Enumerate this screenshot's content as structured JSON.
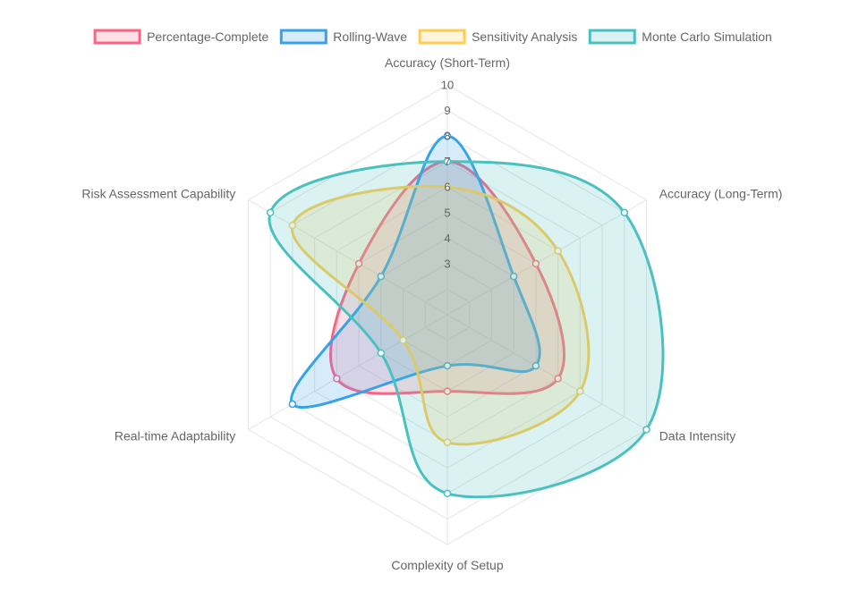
{
  "chart_data": {
    "type": "radar",
    "axes": [
      "Accuracy (Short-Term)",
      "Accuracy (Long-Term)",
      "Data Intensity",
      "Complexity of Setup",
      "Real-time Adaptability",
      "Risk Assessment Capability"
    ],
    "r_min": 1,
    "r_max": 10,
    "ticks": [
      3,
      4,
      5,
      6,
      7,
      8,
      9,
      10
    ],
    "grid": true,
    "legend_position": "top",
    "series": [
      {
        "name": "Percentage-Complete",
        "values": [
          7,
          5,
          6,
          4,
          6,
          5
        ],
        "border_color": "#ff6384",
        "fill_color": "rgba(255,99,132,0.2)"
      },
      {
        "name": "Rolling-Wave",
        "values": [
          8,
          4,
          5,
          3,
          8,
          4
        ],
        "border_color": "#36a2eb",
        "fill_color": "rgba(54,162,235,0.2)"
      },
      {
        "name": "Sensitivity Analysis",
        "values": [
          6,
          6,
          7,
          6,
          3,
          8
        ],
        "border_color": "#ffcd56",
        "fill_color": "rgba(255,205,86,0.2)"
      },
      {
        "name": "Monte Carlo Simulation",
        "values": [
          7,
          9,
          10,
          8,
          4,
          9
        ],
        "border_color": "#4bc0c0",
        "fill_color": "rgba(75,192,192,0.2)"
      }
    ]
  }
}
